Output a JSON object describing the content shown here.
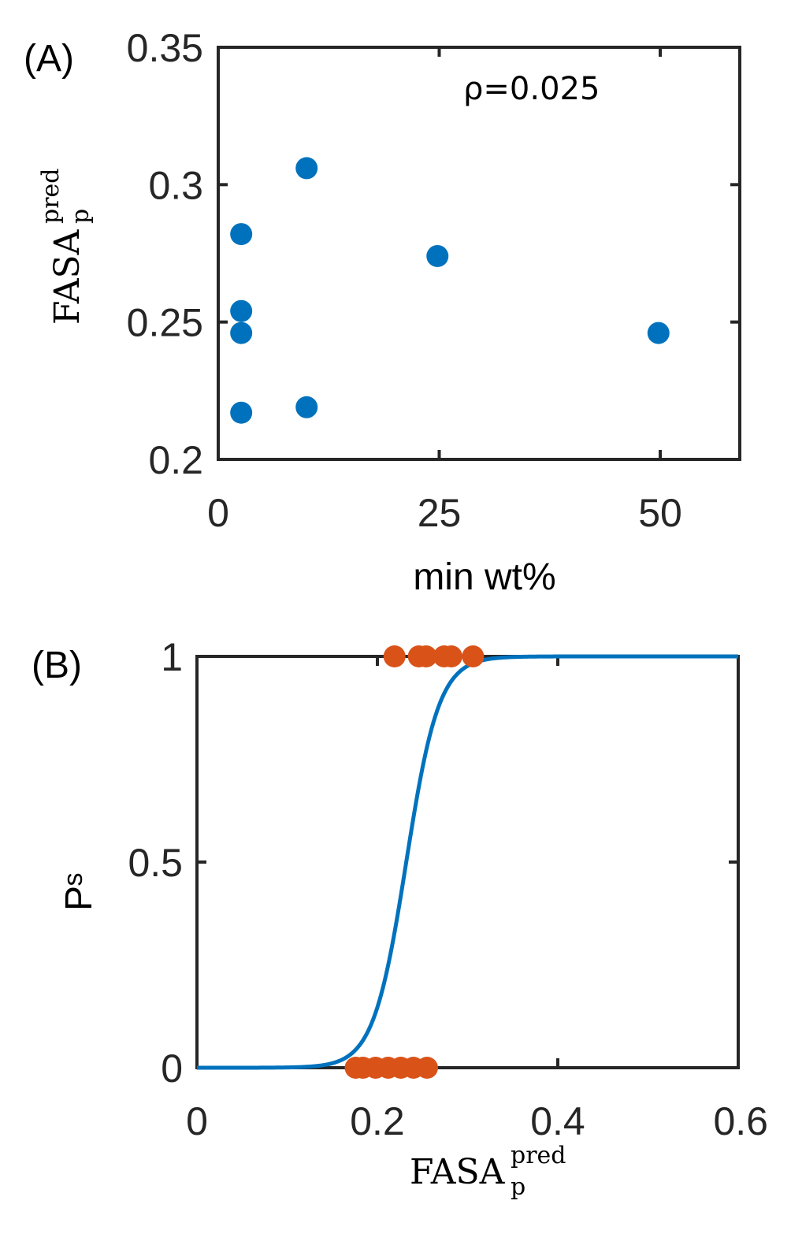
{
  "chart_data": [
    {
      "type": "scatter",
      "panel_label": "(A)",
      "xlabel": "min wt%",
      "ylabel": {
        "base": "FASA",
        "sub": "p",
        "sup": "pred"
      },
      "xlim": [
        0,
        59
      ],
      "ylim": [
        0.2,
        0.35
      ],
      "xticks": [
        0,
        25,
        50
      ],
      "xtick_labels": [
        "0",
        "25",
        "50"
      ],
      "yticks": [
        0.2,
        0.25,
        0.3,
        0.35
      ],
      "ytick_labels": [
        "0.2",
        "0.25",
        "0.3",
        "0.35"
      ],
      "annotation": "ρ=0.025",
      "grid": false,
      "marker_color": "#0072BD",
      "points": [
        {
          "x": 2.6,
          "y": 0.282
        },
        {
          "x": 2.6,
          "y": 0.254
        },
        {
          "x": 2.6,
          "y": 0.246
        },
        {
          "x": 2.6,
          "y": 0.217
        },
        {
          "x": 10,
          "y": 0.306
        },
        {
          "x": 10,
          "y": 0.219
        },
        {
          "x": 24.8,
          "y": 0.274
        },
        {
          "x": 49.8,
          "y": 0.246
        }
      ]
    },
    {
      "type": "line",
      "panel_label": "(B)",
      "xlabel": {
        "base": "FASA",
        "sub": "p",
        "sup": "pred"
      },
      "ylabel": {
        "base": "P",
        "sub": "s"
      },
      "xlim": [
        0,
        0.6
      ],
      "ylim": [
        0,
        1
      ],
      "xticks": [
        0,
        0.2,
        0.4,
        0.6
      ],
      "xtick_labels": [
        "0",
        "0.2",
        "0.4",
        "0.6"
      ],
      "yticks": [
        0,
        0.5,
        1
      ],
      "ytick_labels": [
        "0",
        "0.5",
        "1"
      ],
      "grid": false,
      "line_color": "#0072BD",
      "marker_color": "#D95319",
      "curve": {
        "model": "logistic",
        "midpoint": 0.232,
        "steepness": 55
      },
      "points_at_1": [
        0.219,
        0.246,
        0.254,
        0.274,
        0.282,
        0.306
      ],
      "points_at_0": [
        0.176,
        0.184,
        0.198,
        0.212,
        0.226,
        0.24,
        0.255
      ]
    }
  ]
}
